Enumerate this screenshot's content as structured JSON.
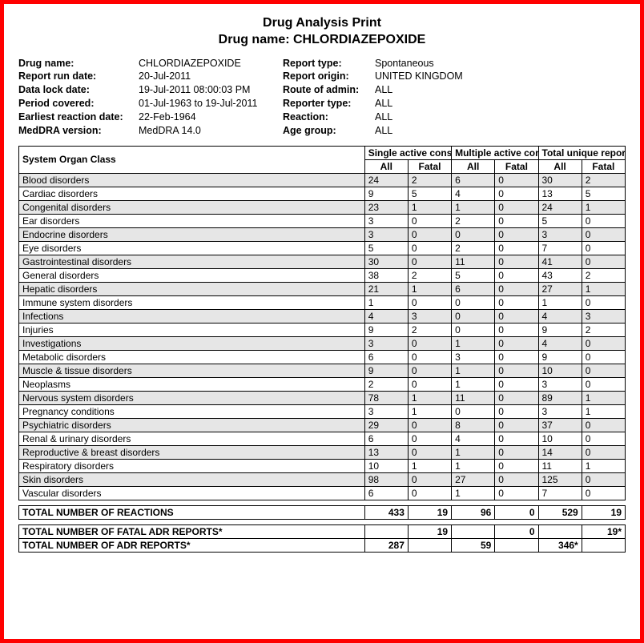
{
  "title": {
    "line1": "Drug Analysis Print",
    "line2_prefix": "Drug name: ",
    "drug_name": "CHLORDIAZEPOXIDE"
  },
  "meta_left": {
    "labels": [
      "Drug name:",
      "Report run date:",
      "Data lock date:",
      "Period covered:",
      "Earliest reaction date:",
      "MedDRA version:"
    ],
    "values": [
      "CHLORDIAZEPOXIDE",
      "20-Jul-2011",
      "19-Jul-2011 08:00:03 PM",
      "01-Jul-1963 to 19-Jul-2011",
      "22-Feb-1964",
      "MedDRA 14.0"
    ]
  },
  "meta_right": {
    "labels": [
      "Report type:",
      "Report origin:",
      "Route of admin:",
      "Reporter type:",
      "Reaction:",
      "Age group:"
    ],
    "values": [
      "Spontaneous",
      "UNITED KINGDOM",
      "ALL",
      "ALL",
      "ALL",
      "ALL"
    ]
  },
  "headers": {
    "soc": "System Organ Class",
    "single": "Single active constituent",
    "multiple": "Multiple active constituent",
    "total": "Total unique reports*",
    "all": "All",
    "fatal": "Fatal"
  },
  "rows": [
    {
      "name": "Blood disorders",
      "v": [
        "24",
        "2",
        "6",
        "0",
        "30",
        "2"
      ]
    },
    {
      "name": "Cardiac disorders",
      "v": [
        "9",
        "5",
        "4",
        "0",
        "13",
        "5"
      ]
    },
    {
      "name": "Congenital disorders",
      "v": [
        "23",
        "1",
        "1",
        "0",
        "24",
        "1"
      ]
    },
    {
      "name": "Ear disorders",
      "v": [
        "3",
        "0",
        "2",
        "0",
        "5",
        "0"
      ]
    },
    {
      "name": "Endocrine disorders",
      "v": [
        "3",
        "0",
        "0",
        "0",
        "3",
        "0"
      ]
    },
    {
      "name": "Eye disorders",
      "v": [
        "5",
        "0",
        "2",
        "0",
        "7",
        "0"
      ]
    },
    {
      "name": "Gastrointestinal disorders",
      "v": [
        "30",
        "0",
        "11",
        "0",
        "41",
        "0"
      ]
    },
    {
      "name": "General disorders",
      "v": [
        "38",
        "2",
        "5",
        "0",
        "43",
        "2"
      ]
    },
    {
      "name": "Hepatic disorders",
      "v": [
        "21",
        "1",
        "6",
        "0",
        "27",
        "1"
      ]
    },
    {
      "name": "Immune system disorders",
      "v": [
        "1",
        "0",
        "0",
        "0",
        "1",
        "0"
      ]
    },
    {
      "name": "Infections",
      "v": [
        "4",
        "3",
        "0",
        "0",
        "4",
        "3"
      ]
    },
    {
      "name": "Injuries",
      "v": [
        "9",
        "2",
        "0",
        "0",
        "9",
        "2"
      ]
    },
    {
      "name": "Investigations",
      "v": [
        "3",
        "0",
        "1",
        "0",
        "4",
        "0"
      ]
    },
    {
      "name": "Metabolic disorders",
      "v": [
        "6",
        "0",
        "3",
        "0",
        "9",
        "0"
      ]
    },
    {
      "name": "Muscle & tissue disorders",
      "v": [
        "9",
        "0",
        "1",
        "0",
        "10",
        "0"
      ]
    },
    {
      "name": "Neoplasms",
      "v": [
        "2",
        "0",
        "1",
        "0",
        "3",
        "0"
      ]
    },
    {
      "name": "Nervous system disorders",
      "v": [
        "78",
        "1",
        "11",
        "0",
        "89",
        "1"
      ]
    },
    {
      "name": "Pregnancy conditions",
      "v": [
        "3",
        "1",
        "0",
        "0",
        "3",
        "1"
      ]
    },
    {
      "name": "Psychiatric disorders",
      "v": [
        "29",
        "0",
        "8",
        "0",
        "37",
        "0"
      ]
    },
    {
      "name": "Renal & urinary disorders",
      "v": [
        "6",
        "0",
        "4",
        "0",
        "10",
        "0"
      ]
    },
    {
      "name": "Reproductive & breast disorders",
      "v": [
        "13",
        "0",
        "1",
        "0",
        "14",
        "0"
      ]
    },
    {
      "name": "Respiratory disorders",
      "v": [
        "10",
        "1",
        "1",
        "0",
        "11",
        "1"
      ]
    },
    {
      "name": "Skin disorders",
      "v": [
        "98",
        "0",
        "27",
        "0",
        "125",
        "0"
      ]
    },
    {
      "name": "Vascular disorders",
      "v": [
        "6",
        "0",
        "1",
        "0",
        "7",
        "0"
      ]
    }
  ],
  "totals": {
    "reactions": {
      "label": "TOTAL NUMBER OF REACTIONS",
      "v": [
        "433",
        "19",
        "96",
        "0",
        "529",
        "19"
      ]
    },
    "fatal": {
      "label": "TOTAL NUMBER OF FATAL ADR REPORTS*",
      "v": [
        "",
        "19",
        "",
        "0",
        "",
        "19*"
      ]
    },
    "adr": {
      "label": "TOTAL NUMBER OF ADR REPORTS*",
      "v": [
        "287",
        "",
        "59",
        "",
        "346*",
        ""
      ]
    }
  },
  "style": {
    "border_color": "#ff0000",
    "shade_color": "#e6e6e6",
    "font_family": "Arial",
    "title_fontsize": 16,
    "body_fontsize": 12
  }
}
